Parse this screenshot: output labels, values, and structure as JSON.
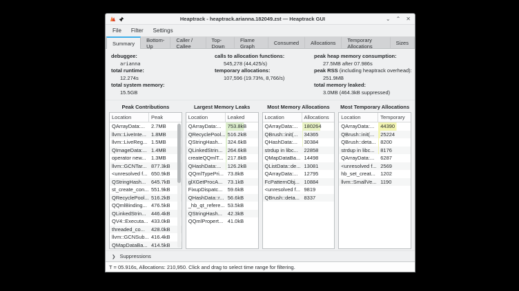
{
  "window": {
    "title": "Heaptrack - heaptrack.arianna.182049.zst — Heaptrack GUI",
    "controls": {
      "minimize": "⌄",
      "maximize": "⌃",
      "close": "✕"
    },
    "titlebar_icons": [
      "heaptrack-app-icon",
      "pin-icon"
    ]
  },
  "menu": {
    "items": [
      {
        "label": "File"
      },
      {
        "label": "Filter"
      },
      {
        "label": "Settings"
      }
    ]
  },
  "tabs": [
    {
      "label": "Summary",
      "active": true
    },
    {
      "label": "Bottom-Up",
      "active": false
    },
    {
      "label": "Caller / Callee",
      "active": false
    },
    {
      "label": "Top-Down",
      "active": false
    },
    {
      "label": "Flame Graph",
      "active": false
    },
    {
      "label": "Consumed",
      "active": false
    },
    {
      "label": "Allocations",
      "active": false
    },
    {
      "label": "Temporary Allocations",
      "active": false
    },
    {
      "label": "Sizes",
      "active": false
    }
  ],
  "accent_color": "#3daee9",
  "summary": {
    "columns": [
      {
        "entries": [
          {
            "label_bold": "debuggee:",
            "value": "arianna",
            "mono": true
          },
          {
            "label_bold": "total runtime:",
            "value": "12.274s"
          },
          {
            "label_bold": "total system memory:",
            "value": "15.5GB"
          }
        ]
      },
      {
        "entries": [
          {
            "label_bold": "calls to allocation functions:",
            "value": "545,278 (44,425/s)"
          },
          {
            "label_bold": "temporary allocations:",
            "value": "107,596 (19.73%, 8,766/s)"
          }
        ]
      },
      {
        "entries": [
          {
            "label_bold": "peak heap memory consumption:",
            "value": "27.5MB after 07.986s"
          },
          {
            "label_bold": "peak RSS",
            "label_rest": " (including heaptrack overhead):",
            "value": "251.9MB"
          },
          {
            "label_bold": "total memory leaked:",
            "value": "3.0MB (464.3kB suppressed)"
          }
        ]
      }
    ]
  },
  "panels": [
    {
      "title": "Peak Contributions",
      "columns": [
        "Location",
        "Peak"
      ],
      "highlight_color": null,
      "has_scrollbar": true,
      "rows": [
        {
          "location": "QArrayData:...",
          "value": "2.7MB"
        },
        {
          "location": "llvm::LiveInte...",
          "value": "1.8MB"
        },
        {
          "location": "llvm::LiveReg...",
          "value": "1.5MB"
        },
        {
          "location": "QImageData:...",
          "value": "1.4MB"
        },
        {
          "location": "operator new...",
          "value": "1.3MB"
        },
        {
          "location": "llvm::GCNTar...",
          "value": "877.3kB"
        },
        {
          "location": "<unresolved f...",
          "value": "650.9kB"
        },
        {
          "location": "QStringHash...",
          "value": "645.7kB"
        },
        {
          "location": "st_create_con...",
          "value": "551.9kB"
        },
        {
          "location": "QRecyclePool...",
          "value": "516.2kB"
        },
        {
          "location": "QQmlBinding...",
          "value": "476.5kB"
        },
        {
          "location": "QLinkedStrin...",
          "value": "446.4kB"
        },
        {
          "location": "QV4::Executa...",
          "value": "433.0kB"
        },
        {
          "location": "threaded_co...",
          "value": "428.0kB"
        },
        {
          "location": "llvm::GCNSub...",
          "value": "416.4kB"
        },
        {
          "location": "QMapDataBa...",
          "value": "414.5kB"
        },
        {
          "location": "QSGBatchRe...",
          "value": "384.4kB"
        }
      ]
    },
    {
      "title": "Largest Memory Leaks",
      "columns": [
        "Location",
        "Leaked"
      ],
      "highlight_color": "#ddefcd",
      "has_scrollbar": false,
      "rows": [
        {
          "location": "QArrayData:...",
          "value": "753.8kB"
        },
        {
          "location": "QRecyclePool...",
          "value": "516.2kB"
        },
        {
          "location": "QStringHash...",
          "value": "324.6kB"
        },
        {
          "location": "QLinkedStrin...",
          "value": "264.6kB"
        },
        {
          "location": "createQQmlT...",
          "value": "217.8kB"
        },
        {
          "location": "QHashData:...",
          "value": "126.2kB"
        },
        {
          "location": "QQmlTypePri...",
          "value": "73.8kB"
        },
        {
          "location": "glXGetProcA...",
          "value": "73.1kB"
        },
        {
          "location": "FixupDispatc...",
          "value": "59.6kB"
        },
        {
          "location": "QHashData::r...",
          "value": "56.6kB"
        },
        {
          "location": "_hb_qt_refere...",
          "value": "53.5kB"
        },
        {
          "location": "QStringHash...",
          "value": "42.3kB"
        },
        {
          "location": "QQmlPropert...",
          "value": "41.0kB"
        }
      ]
    },
    {
      "title": "Most Memory Allocations",
      "columns": [
        "Location",
        "Allocations"
      ],
      "highlight_color": "#e9f3c4",
      "has_scrollbar": false,
      "rows": [
        {
          "location": "QArrayData:...",
          "value": "180264"
        },
        {
          "location": "QBrush::init(...",
          "value": "34365"
        },
        {
          "location": "QHashData:...",
          "value": "30384"
        },
        {
          "location": "strdup in libc...",
          "value": "22858"
        },
        {
          "location": "QMapDataBa...",
          "value": "14498"
        },
        {
          "location": "QListData::de...",
          "value": "13081"
        },
        {
          "location": "QArrayData:...",
          "value": "12795"
        },
        {
          "location": "FcPatternObj...",
          "value": "10884"
        },
        {
          "location": "<unresolved f...",
          "value": "9819"
        },
        {
          "location": "QBrush::deta...",
          "value": "8337"
        }
      ]
    },
    {
      "title": "Most Temporary Allocations",
      "columns": [
        "Location",
        "Temporary"
      ],
      "highlight_color": "#f3f5b2",
      "has_scrollbar": false,
      "rows": [
        {
          "location": "QArrayData:...",
          "value": "44390"
        },
        {
          "location": "QBrush::init(...",
          "value": "25224"
        },
        {
          "location": "QBrush::deta...",
          "value": "8200"
        },
        {
          "location": "strdup in libc...",
          "value": "8176"
        },
        {
          "location": "QArrayData:...",
          "value": "6287"
        },
        {
          "location": "<unresolved f...",
          "value": "2569"
        },
        {
          "location": "hb_set_creat...",
          "value": "1202"
        },
        {
          "location": "llvm::SmallVe...",
          "value": "1190"
        }
      ]
    }
  ],
  "suppressions": {
    "chevron": "❯",
    "label": "Suppressions"
  },
  "statusbar": {
    "text": "T = 05.916s, Allocations: 210,950. Click and drag to select time range for filtering."
  }
}
